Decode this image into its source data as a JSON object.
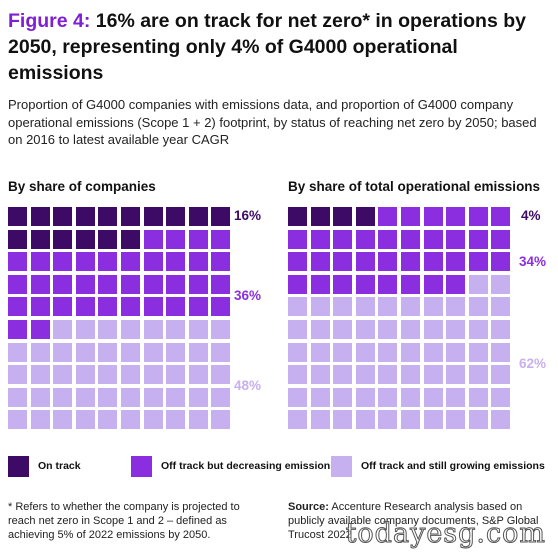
{
  "title": {
    "figure_label": "Figure 4:",
    "text": "16% are on track for net zero* in operations by 2050, representing only 4% of G4000 operational emissions"
  },
  "subtitle": "Proportion of G4000 companies with emissions data, and proportion of G4000 company operational emissions (Scope 1 + 2) footprint, by status of reaching net zero by 2050; based on 2016 to latest available year CAGR",
  "colors": {
    "on_track": "#3d0a66",
    "off_track_decreasing": "#8b2ee0",
    "off_track_growing": "#c7b0ef"
  },
  "chart_data": [
    {
      "type": "waffle",
      "title": "By share of companies",
      "grid": "10x10",
      "categories": [
        "On track",
        "Off track but decreasing emissions",
        "Off track and still growing emissions"
      ],
      "values": [
        16,
        36,
        48
      ],
      "labels": [
        "16%",
        "36%",
        "48%"
      ]
    },
    {
      "type": "waffle",
      "title": "By share of total operational emissions",
      "grid": "10x10",
      "categories": [
        "On track",
        "Off track but decreasing emissions",
        "Off track and still growing emissions"
      ],
      "values": [
        4,
        34,
        62
      ],
      "labels": [
        "4%",
        "34%",
        "62%"
      ]
    }
  ],
  "legend": [
    {
      "label": "On track",
      "color": "#3d0a66"
    },
    {
      "label": "Off track but decreasing emissions",
      "color": "#8b2ee0"
    },
    {
      "label": "Off track and still growing emissions",
      "color": "#c7b0ef"
    }
  ],
  "footnote": "* Refers to whether the company is projected to reach net zero in Scope 1 and 2 – defined as achieving 5% of 2022 emissions by 2050.",
  "source": {
    "label": "Source:",
    "text": "Accenture Research analysis based on publicly available company documents, S&P Global Trucost 2022"
  },
  "watermark": "todayesg.com"
}
